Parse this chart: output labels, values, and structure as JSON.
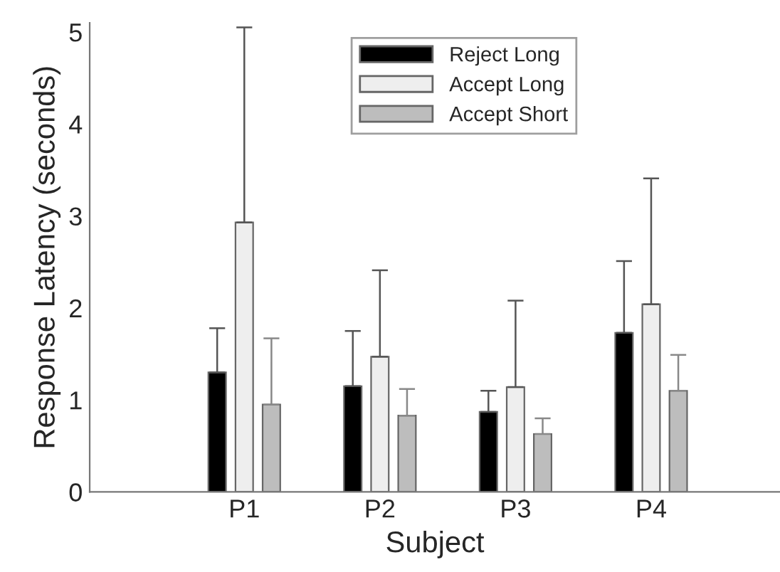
{
  "chart_data": {
    "type": "bar",
    "xlabel": "Subject",
    "ylabel": "Response Latency (seconds)",
    "categories": [
      "P1",
      "P2",
      "P3",
      "P4"
    ],
    "series": [
      {
        "name": "Reject Long",
        "color": "#000000",
        "values": [
          1.3,
          1.15,
          0.87,
          1.73
        ],
        "errors": [
          [
            1.3,
            1.78
          ],
          [
            1.15,
            1.75
          ],
          [
            0.87,
            1.1
          ],
          [
            1.73,
            2.51
          ]
        ]
      },
      {
        "name": "Accept Long",
        "color": "#eeeeee",
        "values": [
          2.93,
          1.47,
          1.14,
          2.04
        ],
        "errors": [
          [
            2.93,
            5.05
          ],
          [
            1.47,
            2.41
          ],
          [
            1.14,
            2.08
          ],
          [
            2.04,
            3.41
          ]
        ]
      },
      {
        "name": "Accept Short",
        "color": "#bdbdbd",
        "values": [
          0.95,
          0.83,
          0.63,
          1.1
        ],
        "errors": [
          [
            0.95,
            1.67
          ],
          [
            0.83,
            1.12
          ],
          [
            0.63,
            0.8
          ],
          [
            1.1,
            1.49
          ]
        ]
      }
    ],
    "ylim": [
      0,
      5.1
    ],
    "yticks": [
      0,
      1,
      2,
      3,
      4,
      5
    ],
    "grid": false,
    "legend": "top right"
  }
}
